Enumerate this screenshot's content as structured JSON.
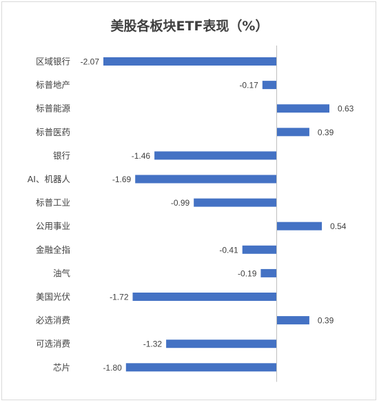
{
  "chart_data": {
    "type": "bar",
    "orientation": "horizontal",
    "title": "美股各板块ETF表现（%）",
    "xlabel": "",
    "ylabel": "",
    "xlim": [
      -2.2,
      1.0
    ],
    "grid": false,
    "legend": "none",
    "bar_color": "#4472C4",
    "axis_color": "#bfbfbf",
    "categories": [
      "区域银行",
      "标普地产",
      "标普能源",
      "标普医药",
      "银行",
      "AI、机器人",
      "标普工业",
      "公用事业",
      "金融全指",
      "油气",
      "美国光伏",
      "必选消费",
      "可选消费",
      "芯片"
    ],
    "values": [
      -2.07,
      -0.17,
      0.63,
      0.39,
      -1.46,
      -1.69,
      -0.99,
      0.54,
      -0.41,
      -0.19,
      -1.72,
      0.39,
      -1.32,
      -1.8
    ],
    "value_labels": [
      "-2.07",
      "-0.17",
      "0.63",
      "0.39",
      "-1.46",
      "-1.69",
      "-0.99",
      "0.54",
      "-0.41",
      "-0.19",
      "-1.72",
      "0.39",
      "-1.32",
      "-1.80"
    ]
  }
}
